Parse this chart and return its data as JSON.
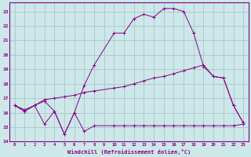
{
  "xlabel": "Windchill (Refroidissement éolien,°C)",
  "bg_color": "#cce8e8",
  "grid_color": "#aabbcc",
  "line_color": "#880088",
  "xlim": [
    -0.5,
    23.5
  ],
  "ylim": [
    14,
    23.6
  ],
  "yticks": [
    14,
    15,
    16,
    17,
    18,
    19,
    20,
    21,
    22,
    23
  ],
  "xticks": [
    0,
    1,
    2,
    3,
    4,
    5,
    6,
    7,
    8,
    9,
    10,
    11,
    12,
    13,
    14,
    15,
    16,
    17,
    18,
    19,
    20,
    21,
    22,
    23
  ],
  "line1_x": [
    0,
    1,
    2,
    3,
    4,
    5,
    6,
    7,
    8,
    10,
    11,
    12,
    13,
    14,
    15,
    16,
    17,
    18,
    19,
    20,
    21,
    22,
    23
  ],
  "line1_y": [
    16.5,
    16.1,
    16.5,
    15.2,
    16.1,
    14.5,
    16.0,
    14.7,
    15.1,
    15.1,
    15.1,
    15.1,
    15.1,
    15.1,
    15.1,
    15.1,
    15.1,
    15.1,
    15.1,
    15.1,
    15.1,
    15.1,
    15.2
  ],
  "line2_x": [
    0,
    1,
    2,
    3,
    4,
    5,
    6,
    7,
    8,
    10,
    11,
    12,
    13,
    14,
    15,
    16,
    17,
    18,
    19,
    20,
    21,
    22,
    23
  ],
  "line2_y": [
    16.5,
    16.2,
    16.5,
    16.9,
    17.0,
    17.1,
    17.2,
    17.4,
    17.5,
    17.7,
    17.8,
    18.0,
    18.2,
    18.4,
    18.5,
    18.7,
    18.9,
    19.1,
    19.3,
    18.5,
    18.4,
    16.5,
    15.3
  ],
  "line3_x": [
    0,
    1,
    2,
    3,
    4,
    5,
    6,
    7,
    8,
    10,
    11,
    12,
    13,
    14,
    15,
    16,
    17,
    18,
    19,
    20,
    21,
    22,
    23
  ],
  "line3_y": [
    16.5,
    16.1,
    16.5,
    16.8,
    16.1,
    14.5,
    16.0,
    17.9,
    19.3,
    21.5,
    21.5,
    22.5,
    22.8,
    22.6,
    23.2,
    23.2,
    23.0,
    21.5,
    19.2,
    18.5,
    18.4,
    16.5,
    15.3
  ]
}
